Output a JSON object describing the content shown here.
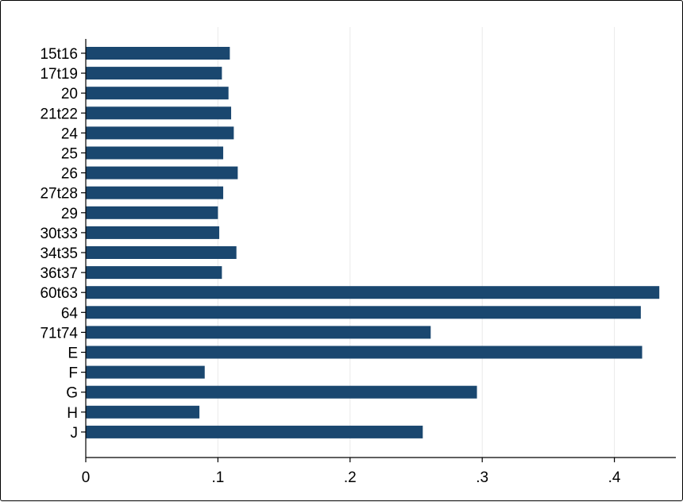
{
  "chart_data": {
    "type": "bar",
    "orientation": "horizontal",
    "categories": [
      "15t16",
      "17t19",
      "20",
      "21t22",
      "24",
      "25",
      "26",
      "27t28",
      "29",
      "30t33",
      "34t35",
      "36t37",
      "60t63",
      "64",
      "71t74",
      "E",
      "F",
      "G",
      "H",
      "J"
    ],
    "values": [
      0.109,
      0.103,
      0.108,
      0.11,
      0.112,
      0.104,
      0.115,
      0.104,
      0.1,
      0.101,
      0.114,
      0.103,
      0.434,
      0.42,
      0.261,
      0.421,
      0.09,
      0.296,
      0.086,
      0.255
    ],
    "xlim": [
      0,
      0.45
    ],
    "x_ticks": [
      0,
      0.1,
      0.2,
      0.3,
      0.4
    ],
    "x_tick_labels": [
      "0",
      ".1",
      ".2",
      ".3",
      ".4"
    ],
    "title": "",
    "xlabel": "",
    "ylabel": "",
    "grid": "vertical",
    "legend": "none",
    "bar_color": "#1a476f",
    "grid_color": "#eaeaea"
  }
}
